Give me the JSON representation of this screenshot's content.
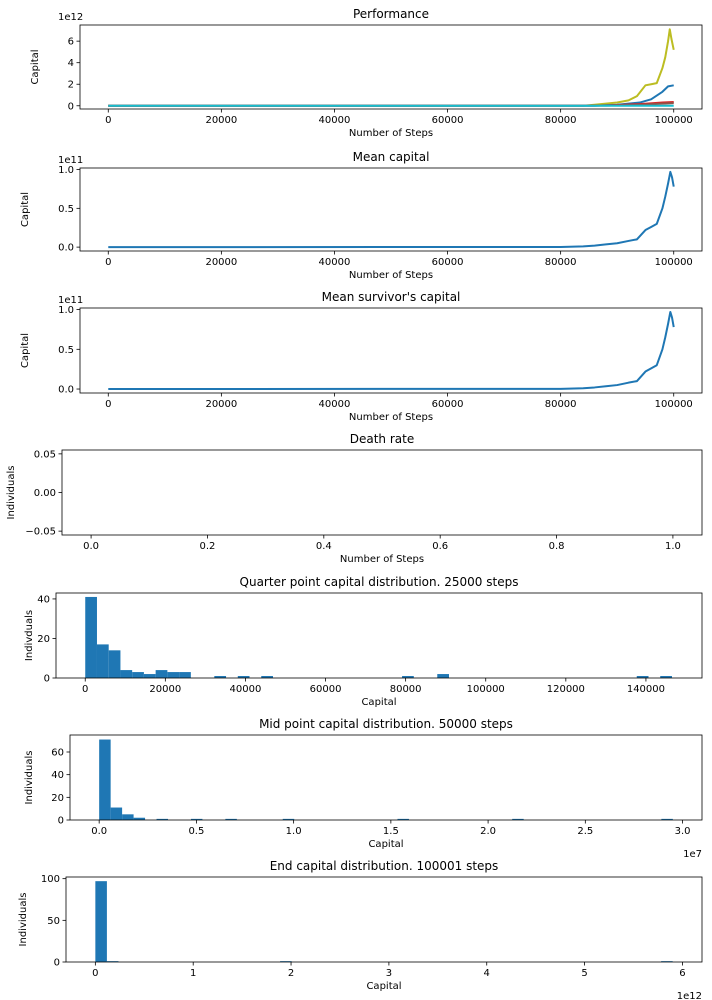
{
  "chart_data": [
    {
      "type": "line",
      "title": "Performance",
      "xlabel": "Number of Steps",
      "ylabel": "Capital",
      "offset_text": "1e12",
      "xlim": [
        -5000,
        105000
      ],
      "ylim": [
        -0.3,
        7.5
      ],
      "xticks": [
        0,
        20000,
        40000,
        60000,
        80000,
        100000
      ],
      "yticks": [
        0,
        2,
        4,
        6
      ],
      "series": [
        {
          "color": "#bcbd22",
          "x": [
            0,
            84000,
            86000,
            88000,
            90000,
            92000,
            93500,
            95000,
            96000,
            97000,
            98000,
            98500,
            99000,
            99300,
            99600,
            100000
          ],
          "y": [
            0,
            0,
            0.1,
            0.2,
            0.3,
            0.5,
            0.9,
            1.9,
            2.0,
            2.1,
            3.5,
            4.5,
            6.0,
            7.1,
            6.2,
            5.2
          ]
        },
        {
          "color": "#1f77b4",
          "x": [
            0,
            86000,
            90000,
            94000,
            96000,
            98000,
            99000,
            100000
          ],
          "y": [
            0,
            0,
            0.1,
            0.3,
            0.6,
            1.3,
            1.8,
            1.9
          ]
        },
        {
          "color": "#d62728",
          "x": [
            0,
            88000,
            94000,
            98000,
            100000
          ],
          "y": [
            0,
            0.02,
            0.15,
            0.3,
            0.35
          ]
        },
        {
          "color": "#8c564b",
          "x": [
            0,
            88000,
            94000,
            98000,
            100000
          ],
          "y": [
            0,
            0.01,
            0.08,
            0.2,
            0.25
          ]
        },
        {
          "color": "#17becf",
          "x": [
            0,
            100000
          ],
          "y": [
            0,
            0
          ]
        }
      ]
    },
    {
      "type": "line",
      "title": "Mean capital",
      "xlabel": "Number of Steps",
      "ylabel": "Capital",
      "offset_text": "1e11",
      "xlim": [
        -5000,
        105000
      ],
      "ylim": [
        -0.05,
        1.02
      ],
      "xticks": [
        0,
        20000,
        40000,
        60000,
        80000,
        100000
      ],
      "yticks": [
        0.0,
        0.5,
        1.0
      ],
      "ytick_labels": [
        "0.0",
        "0.5",
        "1.0"
      ],
      "series": [
        {
          "color": "#1f77b4",
          "x": [
            0,
            80000,
            84000,
            86000,
            88000,
            90000,
            92000,
            93500,
            95000,
            96000,
            97000,
            98000,
            98500,
            99000,
            99400,
            99700,
            100000
          ],
          "y": [
            0,
            0.002,
            0.01,
            0.02,
            0.035,
            0.05,
            0.08,
            0.1,
            0.22,
            0.26,
            0.3,
            0.5,
            0.65,
            0.82,
            0.97,
            0.9,
            0.78
          ]
        }
      ]
    },
    {
      "type": "line",
      "title": "Mean survivor's capital",
      "xlabel": "Number of Steps",
      "ylabel": "Capital",
      "offset_text": "1e11",
      "xlim": [
        -5000,
        105000
      ],
      "ylim": [
        -0.05,
        1.02
      ],
      "xticks": [
        0,
        20000,
        40000,
        60000,
        80000,
        100000
      ],
      "yticks": [
        0.0,
        0.5,
        1.0
      ],
      "ytick_labels": [
        "0.0",
        "0.5",
        "1.0"
      ],
      "series": [
        {
          "color": "#1f77b4",
          "x": [
            0,
            80000,
            84000,
            86000,
            88000,
            90000,
            92000,
            93500,
            95000,
            96000,
            97000,
            98000,
            98500,
            99000,
            99400,
            99700,
            100000
          ],
          "y": [
            0,
            0.002,
            0.01,
            0.02,
            0.035,
            0.05,
            0.08,
            0.1,
            0.22,
            0.26,
            0.3,
            0.5,
            0.65,
            0.82,
            0.97,
            0.9,
            0.78
          ]
        }
      ]
    },
    {
      "type": "line",
      "title": "Death rate",
      "xlabel": "Number of Steps",
      "ylabel": "Individuals",
      "xlim": [
        -0.05,
        1.05
      ],
      "ylim": [
        -0.055,
        0.055
      ],
      "xticks": [
        0.0,
        0.2,
        0.4,
        0.6,
        0.8,
        1.0
      ],
      "xtick_labels": [
        "0.0",
        "0.2",
        "0.4",
        "0.6",
        "0.8",
        "1.0"
      ],
      "yticks": [
        -0.05,
        0.0,
        0.05
      ],
      "ytick_labels": [
        "−0.05",
        "0.00",
        "0.05"
      ],
      "series": []
    },
    {
      "type": "bar",
      "title": "Quarter point capital distribution. 25000 steps",
      "xlabel": "Capital",
      "ylabel": "Indivduals",
      "xlim": [
        -7300,
        154000
      ],
      "ylim": [
        0,
        43
      ],
      "xticks": [
        0,
        20000,
        40000,
        60000,
        80000,
        100000,
        120000,
        140000
      ],
      "yticks": [
        0,
        20,
        40
      ],
      "bin_start": 0,
      "bin_width": 2930,
      "counts": [
        41,
        17,
        14,
        4,
        3,
        2,
        4,
        3,
        3,
        0,
        0,
        1,
        0,
        1,
        0,
        1,
        0,
        0,
        0,
        0,
        0,
        0,
        0,
        0,
        0,
        0,
        0,
        1,
        0,
        0,
        2,
        0,
        0,
        0,
        0,
        0,
        0,
        0,
        0,
        0,
        0,
        0,
        0,
        0,
        0,
        0,
        0,
        1,
        0,
        1
      ]
    },
    {
      "type": "bar",
      "title": "Mid point capital distribution. 50000 steps",
      "xlabel": "Capital",
      "ylabel": "Individuals",
      "offset_text": "1e7",
      "xlim": [
        -0.15,
        3.1
      ],
      "ylim": [
        0,
        75
      ],
      "xticks": [
        0.0,
        0.5,
        1.0,
        1.5,
        2.0,
        2.5,
        3.0
      ],
      "xtick_labels": [
        "0.0",
        "0.5",
        "1.0",
        "1.5",
        "2.0",
        "2.5",
        "3.0"
      ],
      "yticks": [
        0,
        20,
        40,
        60
      ],
      "bin_start": 0,
      "bin_width": 0.059,
      "counts": [
        71,
        11,
        5,
        2,
        0,
        1,
        0,
        0,
        1,
        0,
        0,
        1,
        0,
        0,
        0,
        0,
        1,
        0,
        0,
        0,
        0,
        0,
        0,
        0,
        0,
        0,
        1,
        0,
        0,
        0,
        0,
        0,
        0,
        0,
        0,
        0,
        1,
        0,
        0,
        0,
        0,
        0,
        0,
        0,
        0,
        0,
        0,
        0,
        0,
        1
      ]
    },
    {
      "type": "bar",
      "title": "End capital distribution. 100001 steps",
      "xlabel": "Capital",
      "ylabel": "Individuals",
      "offset_text": "1e12",
      "xlim": [
        -0.3,
        6.2
      ],
      "ylim": [
        0,
        102
      ],
      "xticks": [
        0,
        1,
        2,
        3,
        4,
        5,
        6
      ],
      "yticks": [
        0,
        50,
        100
      ],
      "bin_start": 0,
      "bin_width": 0.118,
      "counts": [
        97,
        1,
        0,
        0,
        0,
        0,
        0,
        0,
        0,
        0,
        0,
        0,
        0,
        0,
        0,
        0,
        1,
        0,
        0,
        0,
        0,
        0,
        0,
        0,
        0,
        0,
        0,
        0,
        0,
        0,
        0,
        0,
        0,
        0,
        0,
        0,
        0,
        0,
        0,
        0,
        0,
        0,
        0,
        0,
        0,
        0,
        0,
        0,
        0,
        1
      ]
    }
  ]
}
